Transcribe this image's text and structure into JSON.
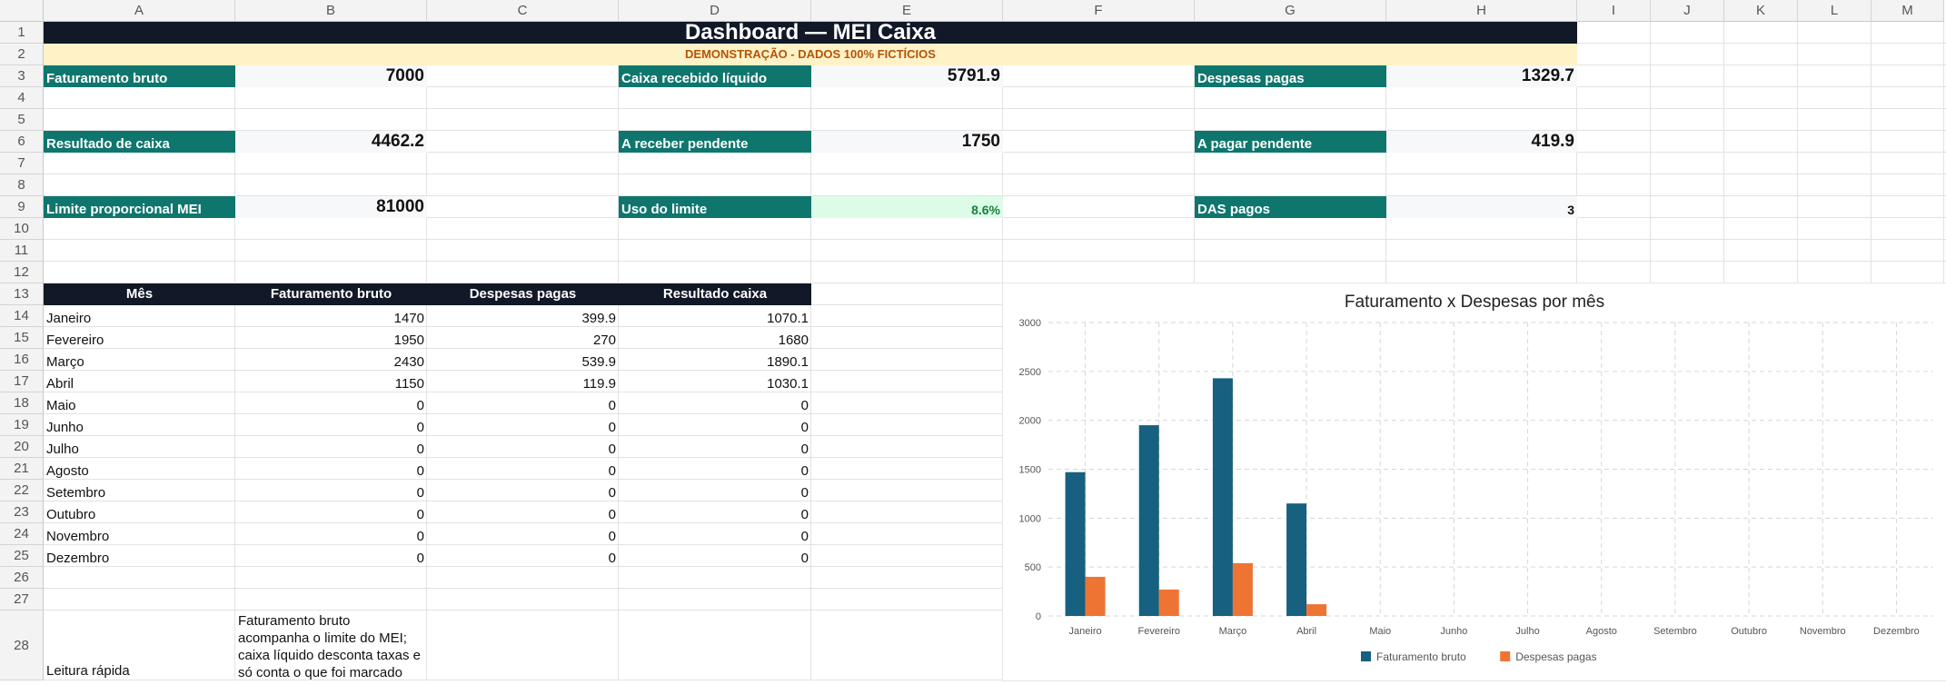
{
  "columns": [
    "A",
    "B",
    "C",
    "D",
    "E",
    "F",
    "G",
    "H",
    "I",
    "J",
    "K",
    "L",
    "M"
  ],
  "rows": [
    "1",
    "2",
    "3",
    "4",
    "5",
    "6",
    "7",
    "8",
    "9",
    "10",
    "11",
    "12",
    "13",
    "14",
    "15",
    "16",
    "17",
    "18",
    "19",
    "20",
    "21",
    "22",
    "23",
    "24",
    "25",
    "26",
    "27",
    "28"
  ],
  "sheet": {
    "title": "Dashboard — MEI Caixa",
    "demo_note": "DEMONSTRAÇÃO - DADOS 100% FICTÍCIOS",
    "kpis": {
      "faturamento_label": "Faturamento bruto",
      "faturamento_value": "7000",
      "caixa_label": "Caixa recebido líquido",
      "caixa_value": "5791.9",
      "despesas_label": "Despesas pagas",
      "despesas_value": "1329.7",
      "resultado_label": "Resultado de caixa",
      "resultado_value": "4462.2",
      "receber_label": "A receber pendente",
      "receber_value": "1750",
      "pagar_label": "A pagar pendente",
      "pagar_value": "419.9",
      "limite_label": "Limite proporcional MEI",
      "limite_value": "81000",
      "uso_label": "Uso do limite",
      "uso_value": "8.6%",
      "das_label": "DAS pagos",
      "das_value": "3"
    },
    "table": {
      "headers": [
        "Mês",
        "Faturamento bruto",
        "Despesas pagas",
        "Resultado caixa"
      ],
      "rows": [
        [
          "Janeiro",
          "1470",
          "399.9",
          "1070.1"
        ],
        [
          "Fevereiro",
          "1950",
          "270",
          "1680"
        ],
        [
          "Março",
          "2430",
          "539.9",
          "1890.1"
        ],
        [
          "Abril",
          "1150",
          "119.9",
          "1030.1"
        ],
        [
          "Maio",
          "0",
          "0",
          "0"
        ],
        [
          "Junho",
          "0",
          "0",
          "0"
        ],
        [
          "Julho",
          "0",
          "0",
          "0"
        ],
        [
          "Agosto",
          "0",
          "0",
          "0"
        ],
        [
          "Setembro",
          "0",
          "0",
          "0"
        ],
        [
          "Outubro",
          "0",
          "0",
          "0"
        ],
        [
          "Novembro",
          "0",
          "0",
          "0"
        ],
        [
          "Dezembro",
          "0",
          "0",
          "0"
        ]
      ]
    },
    "note_label": "Leitura rápida",
    "note_text": "Faturamento bruto acompanha o limite do MEI; caixa líquido desconta taxas e só conta o que foi marcado como recebido."
  },
  "colors": {
    "series_1": "#17607f",
    "series_2": "#ee7434",
    "header_dark": "#111827",
    "kpi_teal": "#0f766e"
  },
  "chart_data": {
    "type": "bar",
    "title": "Faturamento x Despesas por mês",
    "categories": [
      "Janeiro",
      "Fevereiro",
      "Março",
      "Abril",
      "Maio",
      "Junho",
      "Julho",
      "Agosto",
      "Setembro",
      "Outubro",
      "Novembro",
      "Dezembro"
    ],
    "series": [
      {
        "name": "Faturamento bruto",
        "values": [
          1470,
          1950,
          2430,
          1150,
          0,
          0,
          0,
          0,
          0,
          0,
          0,
          0
        ]
      },
      {
        "name": "Despesas pagas",
        "values": [
          399.9,
          270,
          539.9,
          119.9,
          0,
          0,
          0,
          0,
          0,
          0,
          0,
          0
        ]
      }
    ],
    "ylim": [
      0,
      3000
    ],
    "yticks": [
      "0",
      "500",
      "1000",
      "1500",
      "2000",
      "2500",
      "3000"
    ],
    "grid": true,
    "legend": "bottom"
  }
}
